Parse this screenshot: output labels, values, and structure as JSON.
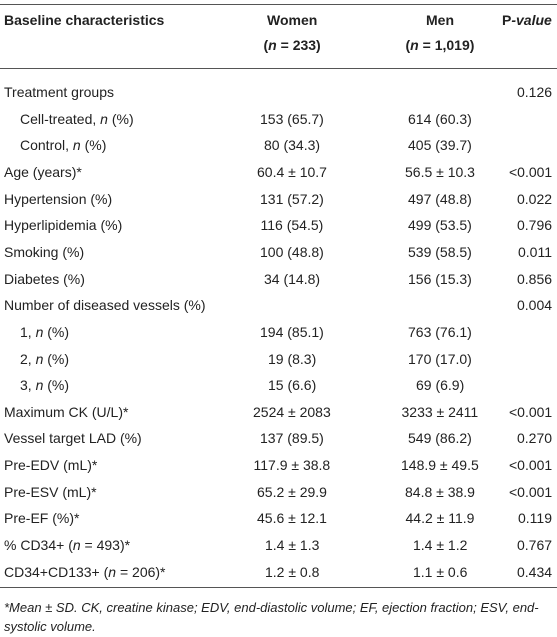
{
  "table": {
    "columns": [
      {
        "title": "Baseline characteristics"
      },
      {
        "title": "Women",
        "subtitle": [
          "(",
          "n",
          " = 233)"
        ]
      },
      {
        "title": "Men",
        "subtitle": [
          "(",
          "n",
          " = 1,019)"
        ]
      },
      {
        "title": [
          "P",
          "-value"
        ]
      }
    ],
    "rows": [
      {
        "label": "Treatment groups",
        "indent": false,
        "women": null,
        "men": null,
        "p": "0.126"
      },
      {
        "label": [
          "Cell-treated, ",
          "n",
          " (%)"
        ],
        "indent": true,
        "women": "153 (65.7)",
        "men": "614 (60.3)",
        "p": null
      },
      {
        "label": [
          "Control, ",
          "n",
          " (%)"
        ],
        "indent": true,
        "women": "80 (34.3)",
        "men": "405 (39.7)",
        "p": null
      },
      {
        "label": "Age (years)*",
        "indent": false,
        "women": "60.4 ± 10.7",
        "men": "56.5 ± 10.3",
        "p": "<0.001"
      },
      {
        "label": "Hypertension (%)",
        "indent": false,
        "women": "131 (57.2)",
        "men": "497 (48.8)",
        "p": "0.022"
      },
      {
        "label": "Hyperlipidemia (%)",
        "indent": false,
        "women": "116 (54.5)",
        "men": "499 (53.5)",
        "p": "0.796"
      },
      {
        "label": "Smoking (%)",
        "indent": false,
        "women": "100 (48.8)",
        "men": "539 (58.5)",
        "p": "0.011"
      },
      {
        "label": "Diabetes (%)",
        "indent": false,
        "women": "34 (14.8)",
        "men": "156 (15.3)",
        "p": "0.856"
      },
      {
        "label": "Number of diseased vessels (%)",
        "indent": false,
        "women": null,
        "men": null,
        "p": "0.004"
      },
      {
        "label": [
          "1, ",
          "n",
          " (%)"
        ],
        "indent": true,
        "women": "194 (85.1)",
        "men": "763 (76.1)",
        "p": null
      },
      {
        "label": [
          "2, ",
          "n",
          " (%)"
        ],
        "indent": true,
        "women": "19 (8.3)",
        "men": "170 (17.0)",
        "p": null
      },
      {
        "label": [
          "3, ",
          "n",
          " (%)"
        ],
        "indent": true,
        "women": "15 (6.6)",
        "men": "69 (6.9)",
        "p": null
      },
      {
        "label": "Maximum CK (U/L)*",
        "indent": false,
        "women": "2524 ± 2083",
        "men": "3233 ± 2411",
        "p": "<0.001"
      },
      {
        "label": "Vessel target LAD (%)",
        "indent": false,
        "women": "137 (89.5)",
        "men": "549 (86.2)",
        "p": "0.270"
      },
      {
        "label": "Pre-EDV (mL)*",
        "indent": false,
        "women": "117.9 ± 38.8",
        "men": "148.9 ± 49.5",
        "p": "<0.001"
      },
      {
        "label": "Pre-ESV (mL)*",
        "indent": false,
        "women": "65.2 ± 29.9",
        "men": "84.8 ± 38.9",
        "p": "<0.001"
      },
      {
        "label": "Pre-EF (%)*",
        "indent": false,
        "women": "45.6 ± 12.1",
        "men": "44.2 ± 11.9",
        "p": "0.119"
      },
      {
        "label": [
          "% CD34+ (",
          "n",
          " = 493)*"
        ],
        "indent": false,
        "women": "1.4 ± 1.3",
        "men": "1.4 ± 1.2",
        "p": "0.767"
      },
      {
        "label": [
          "CD34+CD133+ (",
          "n",
          " = 206)*"
        ],
        "indent": false,
        "women": "1.2 ± 0.8",
        "men": "1.1 ± 0.6",
        "p": "0.434"
      }
    ],
    "footnote": "*Mean ± SD. CK, creatine kinase; EDV, end-diastolic volume; EF, ejection fraction; ESV, end-systolic volume."
  }
}
